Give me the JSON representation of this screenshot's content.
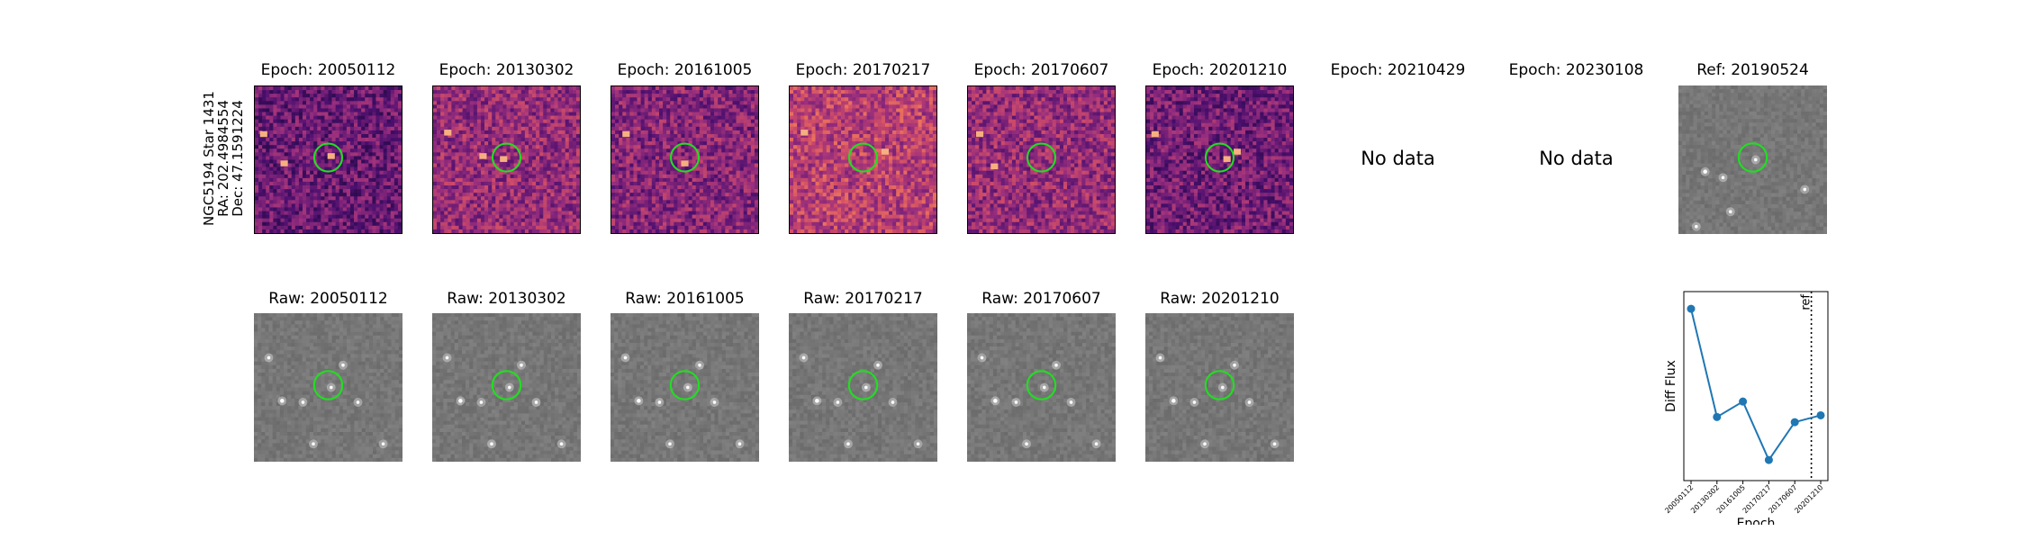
{
  "star_label": {
    "name": "NGC5194 Star 1431",
    "ra": "RA: 202.4984554",
    "dec": "Dec: 47.1591224"
  },
  "diff_panels": [
    {
      "title": "Epoch: 20050112",
      "data": true,
      "spots": [
        [
          0.06,
          0.33
        ],
        [
          0.2,
          0.53
        ],
        [
          0.52,
          0.48
        ]
      ]
    },
    {
      "title": "Epoch: 20130302",
      "data": true,
      "spots": [
        [
          0.1,
          0.32
        ],
        [
          0.34,
          0.48
        ],
        [
          0.48,
          0.5
        ]
      ]
    },
    {
      "title": "Epoch: 20161005",
      "data": true,
      "spots": [
        [
          0.1,
          0.33
        ],
        [
          0.5,
          0.53
        ]
      ]
    },
    {
      "title": "Epoch: 20170217",
      "data": true,
      "spots": [
        [
          0.1,
          0.32
        ],
        [
          0.65,
          0.45
        ]
      ]
    },
    {
      "title": "Epoch: 20170607",
      "data": true,
      "spots": [
        [
          0.08,
          0.33
        ],
        [
          0.18,
          0.55
        ]
      ]
    },
    {
      "title": "Epoch: 20201210",
      "data": true,
      "spots": [
        [
          0.06,
          0.33
        ],
        [
          0.55,
          0.5
        ],
        [
          0.62,
          0.45
        ]
      ]
    },
    {
      "title": "Epoch: 20210429",
      "data": false,
      "message": "No data"
    },
    {
      "title": "Epoch: 20230108",
      "data": false,
      "message": "No data"
    }
  ],
  "ref_panel": {
    "title": "Ref: 20190524"
  },
  "raw_panels": [
    {
      "title": "Raw: 20050112"
    },
    {
      "title": "Raw: 20130302"
    },
    {
      "title": "Raw: 20161005"
    },
    {
      "title": "Raw: 20170217"
    },
    {
      "title": "Raw: 20170607"
    },
    {
      "title": "Raw: 20201210"
    }
  ],
  "colors": {
    "marker": "#22dd22",
    "line": "#1f77b4"
  },
  "chart_data": {
    "type": "line",
    "xlabel": "Epoch",
    "ylabel": "Diff Flux",
    "categories": [
      "20050112",
      "20130302",
      "20161005",
      "20170217",
      "20170607",
      "20201210"
    ],
    "values": [
      1.0,
      0.37,
      0.46,
      0.12,
      0.34,
      0.38
    ],
    "ylim": [
      0.0,
      1.1
    ],
    "reference_line": {
      "label": "ref",
      "between": [
        "20170607",
        "20201210"
      ]
    },
    "grid": false
  }
}
